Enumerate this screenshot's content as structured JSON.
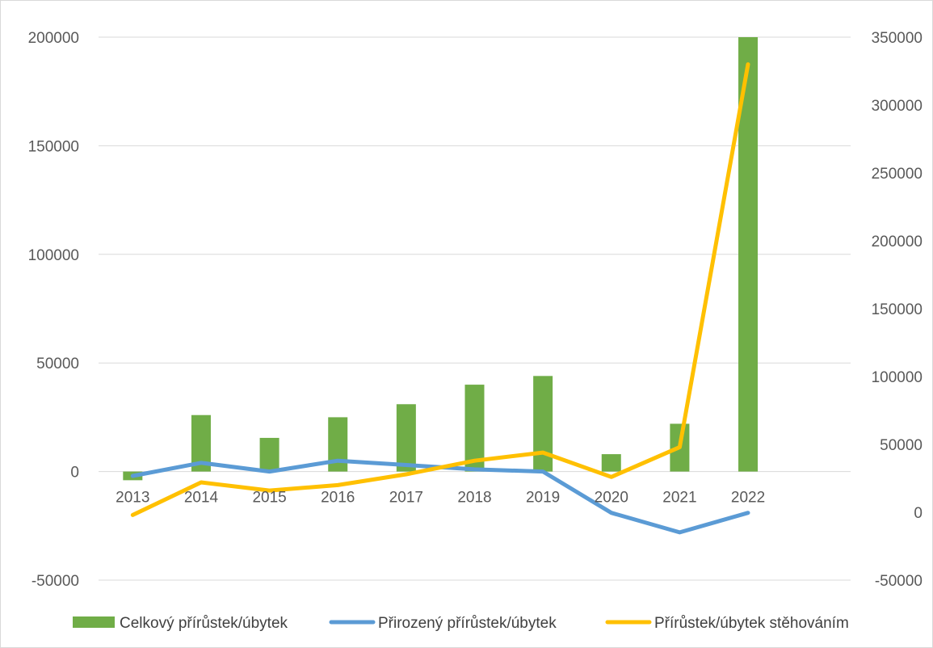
{
  "chart_data": {
    "type": "bar",
    "categories": [
      "2013",
      "2014",
      "2015",
      "2016",
      "2017",
      "2018",
      "2019",
      "2020",
      "2021",
      "2022"
    ],
    "y_left": {
      "ylim": [
        -50000,
        200000
      ],
      "ticks": [
        "200000",
        "150000",
        "100000",
        "50000",
        "0",
        "-50000"
      ]
    },
    "y_right": {
      "ylim": [
        -50000,
        350000
      ],
      "ticks": [
        "350000",
        "300000",
        "250000",
        "200000",
        "150000",
        "100000",
        "50000",
        "0",
        "-50000"
      ]
    },
    "grid": true,
    "legend_position": "bottom",
    "series": [
      {
        "name": "Celkový přírůstek/úbytek",
        "kind": "bar",
        "axis": "left",
        "color": "#70ad47",
        "values": [
          -4000,
          26000,
          15500,
          25000,
          31000,
          40000,
          44000,
          8000,
          22000,
          200000
        ]
      },
      {
        "name": "Přirozený přírůstek/úbytek",
        "kind": "line",
        "axis": "left",
        "color": "#5b9bd5",
        "values": [
          -2000,
          4000,
          0,
          5000,
          3000,
          1000,
          0,
          -19000,
          -28000,
          -19000
        ]
      },
      {
        "name": "Přírůstek/úbytek stěhováním",
        "kind": "line",
        "axis": "right",
        "color": "#ffc000",
        "values": [
          -2000,
          22000,
          16000,
          20000,
          28000,
          38000,
          44000,
          26000,
          48000,
          330000
        ]
      }
    ]
  }
}
